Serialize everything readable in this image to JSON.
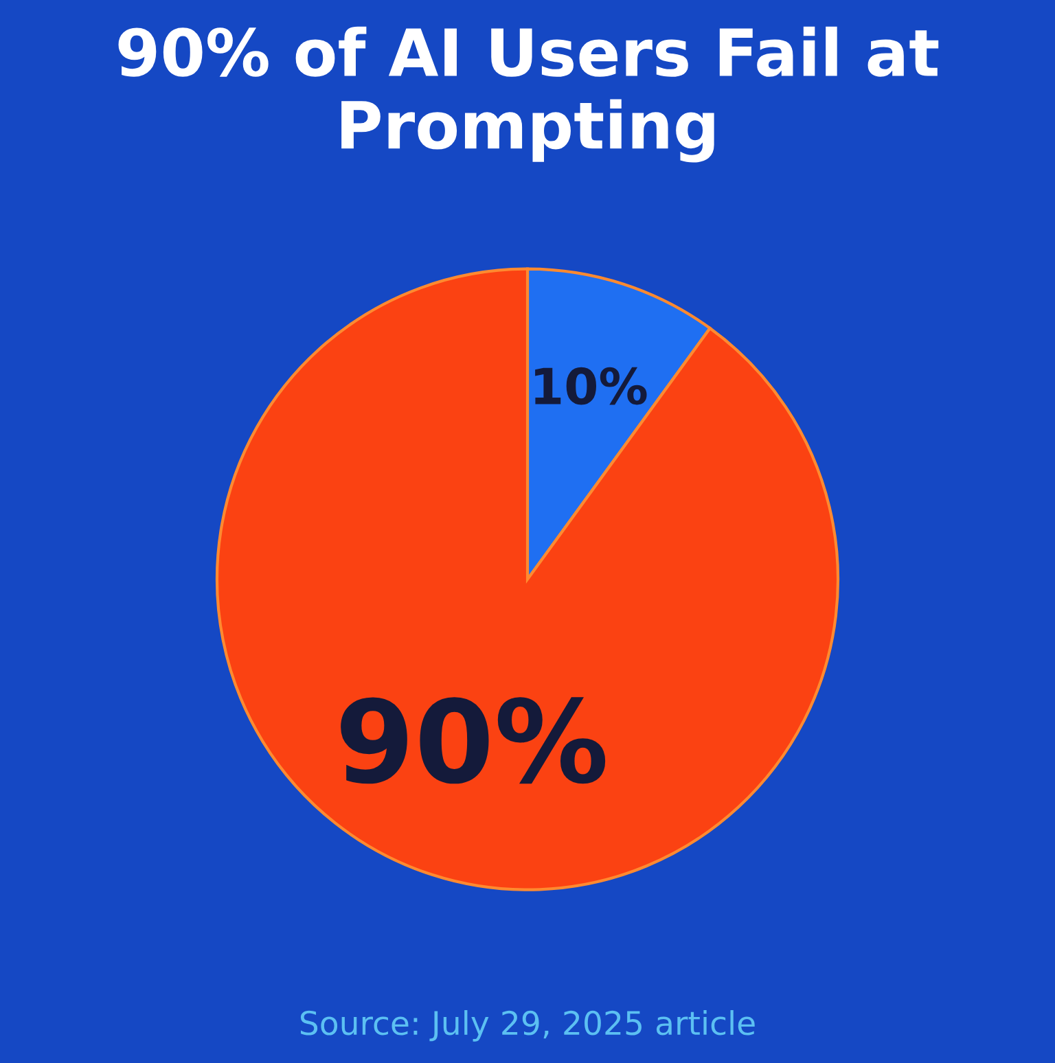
{
  "chart_data": {
    "type": "pie",
    "title": "90% of AI Users Fail at Prompting",
    "categories": [
      null,
      null
    ],
    "values": [
      10,
      90
    ],
    "colors": [
      "#1f6ff2",
      "#fb4212"
    ],
    "value_labels": [
      "10%",
      "90%"
    ],
    "annotations": [
      "Source: July 29, 2025 article"
    ]
  }
}
